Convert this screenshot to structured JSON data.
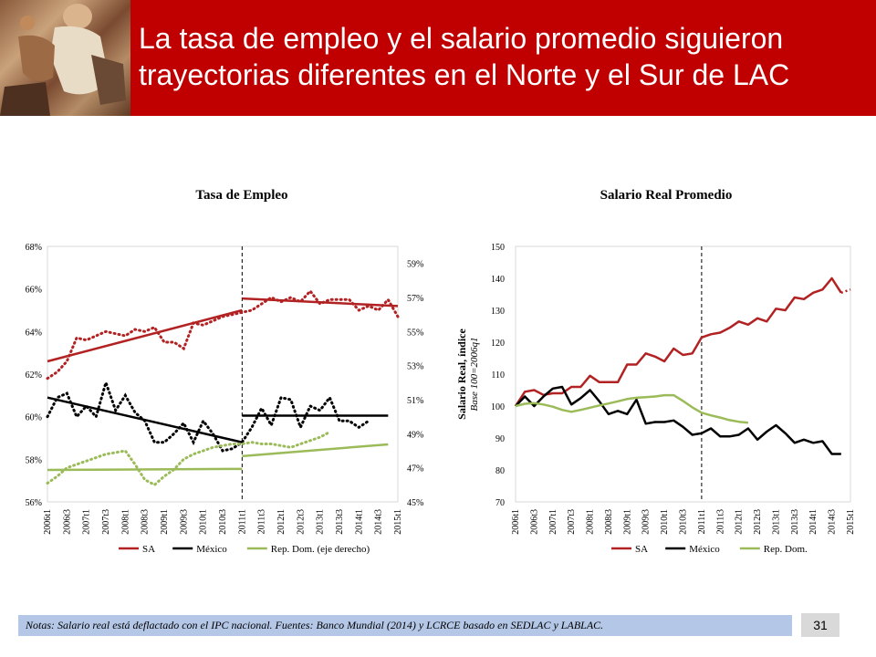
{
  "slide": {
    "title": "La tasa de empleo y el salario promedio siguieron trayectorias diferentes en el Norte y el Sur de LAC",
    "notes": "Notas: Salario real está deflactado con el IPC nacional. Fuentes: Banco Mundial (2014) y LCRCE basado en SEDLAC y LABLAC.",
    "page_number": "31"
  },
  "colors": {
    "header_bg": "#c00000",
    "sa": "#b22222",
    "mexico": "#000000",
    "rd": "#9bbb59",
    "notes_bg": "#b4c7e7"
  },
  "chart_data": [
    {
      "type": "line",
      "title": "Tasa de Empleo",
      "x_ticks": [
        "2006t1",
        "2006t3",
        "2007t1",
        "2007t3",
        "2008t1",
        "2008t3",
        "2009t1",
        "2009t3",
        "2010t1",
        "2010t3",
        "2011t1",
        "2011t3",
        "2012t1",
        "2012t3",
        "2013t1",
        "2013t3",
        "2014t1",
        "2014t3",
        "2015t1"
      ],
      "y_left_ticks": [
        "68%",
        "66%",
        "64%",
        "62%",
        "60%",
        "58%",
        "56%"
      ],
      "y_left_range": [
        56,
        68
      ],
      "y_right_ticks": [
        "59%",
        "57%",
        "55%",
        "53%",
        "51%",
        "49%",
        "47%",
        "45%"
      ],
      "y_right_range": [
        45,
        60
      ],
      "legend": [
        "SA",
        "México",
        "Rep. Dom. (eje derecho)"
      ],
      "break_at": "2011t1",
      "series": [
        {
          "name": "SA",
          "axis": "left",
          "style": "dotted",
          "values": [
            61.8,
            62.1,
            62.6,
            63.7,
            63.6,
            63.8,
            64.0,
            63.9,
            63.8,
            64.1,
            64.0,
            64.2,
            63.5,
            63.5,
            63.2,
            64.4,
            64.3,
            64.5,
            64.7,
            64.8,
            64.9,
            65.0,
            65.3,
            65.6,
            65.4,
            65.6,
            65.4,
            65.9,
            65.3,
            65.5,
            65.5,
            65.5,
            65.0,
            65.2,
            65.0,
            65.5,
            64.7
          ]
        },
        {
          "name": "SA (tendencia)",
          "axis": "left",
          "style": "solid",
          "segments": [
            {
              "from": 0,
              "to": 20,
              "y0": 62.6,
              "y1": 65.0
            },
            {
              "from": 20,
              "to": 36,
              "y0": 65.55,
              "y1": 65.2
            }
          ]
        },
        {
          "name": "México",
          "axis": "left",
          "style": "dotted",
          "values": [
            60.0,
            60.9,
            61.1,
            60.0,
            60.5,
            60.0,
            61.6,
            60.3,
            61.0,
            60.2,
            59.8,
            58.8,
            58.8,
            59.2,
            59.7,
            58.8,
            59.8,
            59.2,
            58.4,
            58.5,
            58.8,
            59.5,
            60.4,
            59.6,
            60.9,
            60.8,
            59.5,
            60.5,
            60.3,
            60.9,
            59.8,
            59.8,
            59.5,
            59.8
          ]
        },
        {
          "name": "México (tendencia)",
          "axis": "left",
          "style": "solid",
          "segments": [
            {
              "from": 0,
              "to": 20,
              "y0": 60.9,
              "y1": 58.8
            },
            {
              "from": 20,
              "to": 35,
              "y0": 60.05,
              "y1": 60.05
            }
          ]
        },
        {
          "name": "Rep. Dom.",
          "axis": "right",
          "style": "dotted",
          "values": [
            46.1,
            46.5,
            47.0,
            47.2,
            47.4,
            47.6,
            47.8,
            47.9,
            48.0,
            47.2,
            46.3,
            46.0,
            46.5,
            46.9,
            47.5,
            47.8,
            48.0,
            48.2,
            48.3,
            48.4,
            48.4,
            48.5,
            48.4,
            48.4,
            48.3,
            48.2,
            48.4,
            48.6,
            48.8,
            49.1
          ]
        },
        {
          "name": "Rep. Dom. (tendencia)",
          "axis": "left",
          "style": "solid",
          "segments": [
            {
              "from": 0,
              "to": 20,
              "y0": 57.5,
              "y1": 57.55
            },
            {
              "from": 20,
              "to": 35,
              "y0": 58.15,
              "y1": 58.7
            }
          ]
        }
      ]
    },
    {
      "type": "line",
      "title": "Salario Real Promedio",
      "ylabel": "Salario Real, índice",
      "ylabel_sub": "Base 100=2006q1",
      "x_ticks": [
        "2006t1",
        "2006t3",
        "2007t1",
        "2007t3",
        "2008t1",
        "2008t3",
        "2009t1",
        "2009t3",
        "2010t1",
        "2010t3",
        "2011t1",
        "2011t3",
        "2012t1",
        "2012t3",
        "2013t1",
        "2013t3",
        "2014t1",
        "2014t3",
        "2015t1"
      ],
      "y_ticks": [
        150,
        140,
        130,
        120,
        110,
        100,
        90,
        80,
        70
      ],
      "ylim": [
        70,
        150
      ],
      "legend": [
        "SA",
        "México",
        "Rep. Dom."
      ],
      "break_at": "2011t1",
      "series": [
        {
          "name": "SA",
          "values": [
            100,
            104.5,
            105,
            103.5,
            104,
            104,
            106,
            106,
            109.5,
            107.5,
            107.5,
            107.5,
            113,
            113,
            116.5,
            115.5,
            114,
            118,
            116,
            116.5,
            121.5,
            122.5,
            123,
            124.5,
            126.5,
            125.5,
            127.5,
            126.5,
            130.5,
            130,
            134,
            133.5,
            135.5,
            136.5,
            140,
            135.5
          ],
          "tail": [
            135.5,
            136.5
          ]
        },
        {
          "name": "México",
          "values": [
            100,
            103,
            100,
            103,
            105.5,
            106,
            100.5,
            102.5,
            105,
            101.5,
            97.5,
            98.5,
            97.5,
            102,
            94.5,
            95,
            95,
            95.5,
            93.5,
            91,
            91.5,
            93,
            90.5,
            90.5,
            91,
            93,
            89.5,
            92,
            94,
            91.5,
            88.5,
            89.5,
            88.5,
            89,
            85,
            85
          ]
        },
        {
          "name": "Rep. Dom.",
          "values": [
            100,
            100.7,
            100.9,
            100.5,
            99.8,
            98.8,
            98.2,
            98.8,
            99.5,
            100.2,
            100.8,
            101.5,
            102.2,
            102.6,
            102.8,
            103.0,
            103.4,
            103.4,
            101.6,
            99.6,
            97.9,
            97.1,
            96.4,
            95.6,
            95.1,
            94.8
          ]
        }
      ]
    }
  ]
}
